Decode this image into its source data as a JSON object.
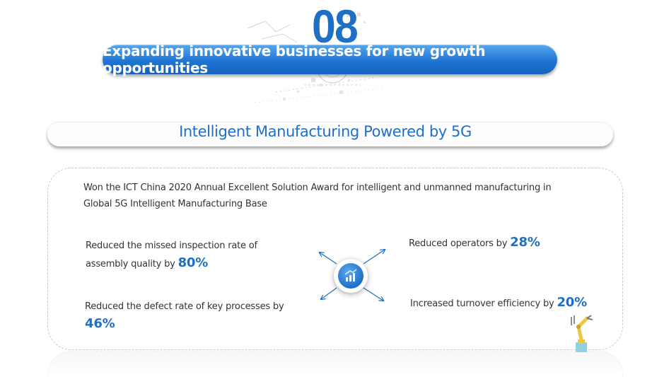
{
  "section": {
    "number": "08",
    "title": "Expanding innovative businesses for new growth opportunities"
  },
  "subtitle": "Intelligent Manufacturing Powered by 5G",
  "award_text": "Won the ICT China 2020 Annual Excellent Solution Award for intelligent and unmanned manufacturing in Global 5G Intelligent Manufacturing Base",
  "stats": {
    "missed_inspection": {
      "label": "Reduced the missed inspection rate of assembly quality by",
      "value": "80%"
    },
    "defect_rate": {
      "label": "Reduced the defect rate of key processes by",
      "value": "46%"
    },
    "operators": {
      "label": "Reduced operators by",
      "value": "28%"
    },
    "turnover": {
      "label": "Increased turnover efficiency by",
      "value": "20%"
    }
  },
  "colors": {
    "accent": "#1f6fc6",
    "pill_light": "#56a8ee",
    "pill_dark": "#1463bd",
    "text": "#333333"
  },
  "icons": {
    "hub": "bar-chart-growth-icon",
    "arrows": "diagonal-arrows-icon",
    "decoration": "tech-pattern-decoration",
    "robot": "robot-arm-icon"
  }
}
